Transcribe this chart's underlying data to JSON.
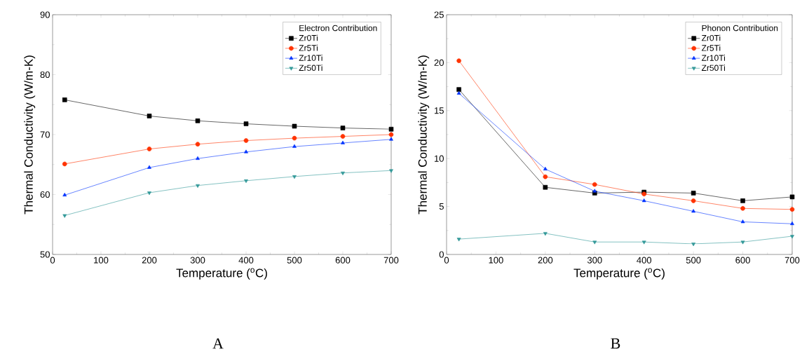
{
  "chart_data": [
    {
      "type": "line",
      "xlabel": "Temperature ($^{o}$C)",
      "ylabel": "Thermal Conductivity (W/m-K)",
      "legend_title": "Electron Contribution",
      "legend": "top right",
      "x": [
        25,
        200,
        300,
        400,
        500,
        600,
        700
      ],
      "xlim": [
        0,
        700
      ],
      "xticks": [
        0,
        100,
        200,
        300,
        400,
        500,
        600,
        700
      ],
      "ylim": [
        50,
        90
      ],
      "yticks": [
        50,
        60,
        70,
        80,
        90
      ],
      "series": [
        {
          "name": "Zr0Ti",
          "color": "#000000",
          "marker": "square",
          "values": [
            75.8,
            73.1,
            72.3,
            71.8,
            71.4,
            71.1,
            70.9
          ]
        },
        {
          "name": "Zr5Ti",
          "color": "#ff3300",
          "marker": "circle",
          "values": [
            65.1,
            67.6,
            68.4,
            69.0,
            69.4,
            69.7,
            70.0
          ]
        },
        {
          "name": "Zr10Ti",
          "color": "#0033ff",
          "marker": "triangle",
          "values": [
            59.9,
            64.5,
            66.0,
            67.1,
            68.0,
            68.6,
            69.2
          ]
        },
        {
          "name": "Zr50Ti",
          "color": "#339999",
          "marker": "triangle-down",
          "values": [
            56.5,
            60.3,
            61.5,
            62.3,
            63.0,
            63.6,
            64.0
          ]
        }
      ],
      "annotations": [
        "A"
      ]
    },
    {
      "type": "line",
      "xlabel": "Temperature ($^{o}$C)",
      "ylabel": "Thermal Conductivity (W/m-K)",
      "legend_title": "Phonon Contribution",
      "legend": "top right",
      "x": [
        25,
        200,
        300,
        400,
        500,
        600,
        700
      ],
      "xlim": [
        0,
        700
      ],
      "xticks": [
        0,
        100,
        200,
        300,
        400,
        500,
        600,
        700
      ],
      "ylim": [
        0,
        25
      ],
      "yticks": [
        0,
        5,
        10,
        15,
        20,
        25
      ],
      "series": [
        {
          "name": "Zr0Ti",
          "color": "#000000",
          "marker": "square",
          "values": [
            17.2,
            7.0,
            6.4,
            6.5,
            6.4,
            5.6,
            6.0
          ]
        },
        {
          "name": "Zr5Ti",
          "color": "#ff3300",
          "marker": "circle",
          "values": [
            20.2,
            8.1,
            7.3,
            6.3,
            5.6,
            4.8,
            4.7
          ]
        },
        {
          "name": "Zr10Ti",
          "color": "#0033ff",
          "marker": "triangle",
          "values": [
            16.8,
            8.9,
            6.6,
            5.6,
            4.5,
            3.4,
            3.2
          ]
        },
        {
          "name": "Zr50Ti",
          "color": "#339999",
          "marker": "triangle-down",
          "values": [
            1.6,
            2.2,
            1.3,
            1.3,
            1.1,
            1.3,
            1.9
          ]
        }
      ],
      "annotations": [
        "B"
      ]
    }
  ]
}
